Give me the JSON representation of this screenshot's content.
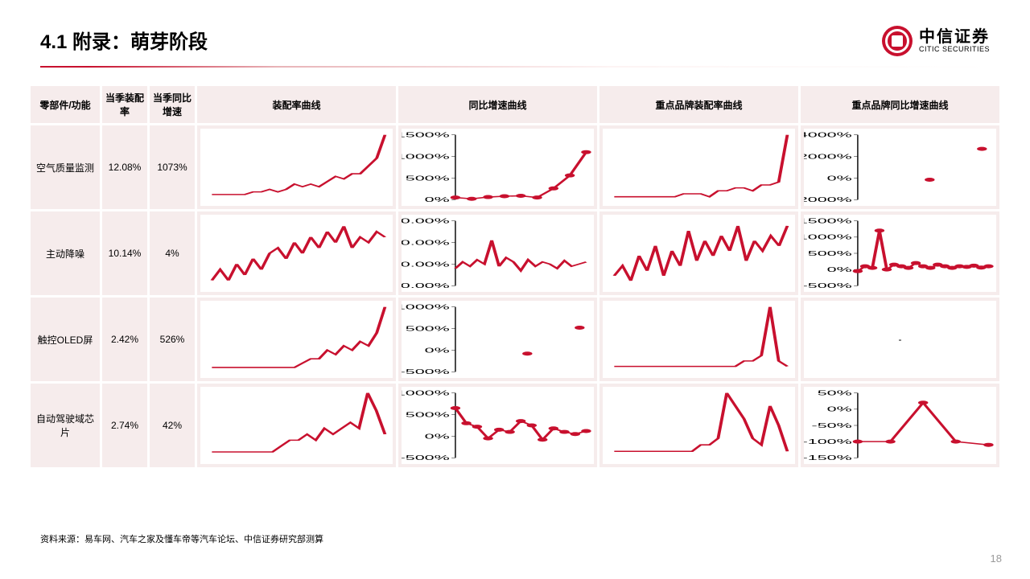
{
  "header": {
    "title": "4.1 附录：萌芽阶段",
    "logo_cn": "中信证券",
    "logo_en": "CITIC SECURITIES"
  },
  "colors": {
    "brand": "#c8102e",
    "cell_bg": "#f6ecec",
    "chart_bg": "#ffffff",
    "text": "#000000",
    "page_num": "#9a9a9a"
  },
  "table": {
    "headers": [
      "零部件/功能",
      "当季装配率",
      "当季同比增速",
      "装配率曲线",
      "同比增速曲线",
      "重点品牌装配率曲线",
      "重点品牌同比增速曲线"
    ],
    "rows": [
      {
        "name": "空气质量监测",
        "rate": "12.08%",
        "growth": "1073%",
        "charts": [
          {
            "type": "line",
            "y": [
              2,
              2,
              2,
              2,
              2,
              3,
              3,
              4,
              3,
              4,
              6,
              5,
              6,
              5,
              7,
              9,
              8,
              10,
              10,
              13,
              16,
              25
            ],
            "ylim": [
              0,
              25
            ],
            "ticks": []
          },
          {
            "type": "line-dot",
            "y": [
              50,
              20,
              60,
              80,
              90,
              50,
              260,
              560,
              1100
            ],
            "ylim": [
              0,
              1500
            ],
            "ticks": [
              "0%",
              "500%",
              "1000%",
              "1500%"
            ]
          },
          {
            "type": "line",
            "y": [
              1,
              1,
              1,
              1,
              1,
              1,
              1,
              1,
              2,
              2,
              2,
              1,
              3,
              3,
              4,
              4,
              3,
              5,
              5,
              6,
              22
            ],
            "ylim": [
              0,
              22
            ],
            "ticks": []
          },
          {
            "type": "dot",
            "y": [
              -150,
              2700
            ],
            "ylim": [
              -2000,
              4000
            ],
            "ticks": [
              "-2000%",
              "0%",
              "2000%",
              "4000%"
            ]
          }
        ]
      },
      {
        "name": "主动降噪",
        "rate": "10.14%",
        "growth": "4%",
        "charts": [
          {
            "type": "line",
            "y": [
              3,
              5,
              3,
              6,
              4,
              7,
              5,
              8,
              9,
              7,
              10,
              8,
              11,
              9,
              12,
              10,
              13,
              9,
              11,
              10,
              12,
              11
            ],
            "ylim": [
              2,
              14
            ],
            "ticks": []
          },
          {
            "type": "line",
            "y": [
              -100,
              50,
              -50,
              100,
              0,
              550,
              -50,
              150,
              50,
              -150,
              100,
              -50,
              50,
              0,
              -100,
              80,
              -50,
              0,
              50
            ],
            "ylim": [
              -500,
              1000
            ],
            "ticks": [
              "-500.00%",
              "0.00%",
              "500.00%",
              "1000.00%"
            ]
          },
          {
            "type": "line",
            "y": [
              3,
              5,
              2,
              7,
              4,
              9,
              3,
              8,
              5,
              12,
              6,
              10,
              7,
              11,
              8,
              13,
              6,
              10,
              8,
              11,
              9,
              13
            ],
            "ylim": [
              1,
              14
            ],
            "ticks": []
          },
          {
            "type": "line-dot",
            "y": [
              -50,
              100,
              50,
              1200,
              0,
              150,
              100,
              50,
              200,
              100,
              50,
              150,
              100,
              50,
              100,
              80,
              120,
              60,
              100
            ],
            "ylim": [
              -500,
              1500
            ],
            "ticks": [
              "-500%",
              "0%",
              "500%",
              "1000%",
              "1500%"
            ]
          }
        ]
      },
      {
        "name": "触控OLED屏",
        "rate": "2.42%",
        "growth": "526%",
        "charts": [
          {
            "type": "line",
            "y": [
              1,
              1,
              1,
              1,
              1,
              1,
              1,
              1,
              1,
              1,
              1,
              2,
              3,
              3,
              5,
              4,
              6,
              5,
              7,
              6,
              9,
              15
            ],
            "ylim": [
              0,
              15
            ],
            "ticks": []
          },
          {
            "type": "dot",
            "y": [
              -80,
              520
            ],
            "ylim": [
              -500,
              1000
            ],
            "ticks": [
              "-500%",
              "0%",
              "500%",
              "1000%"
            ]
          },
          {
            "type": "line",
            "y": [
              1,
              1,
              1,
              1,
              1,
              1,
              1,
              1,
              1,
              1,
              1,
              1,
              1,
              1,
              1,
              2,
              2,
              3,
              12,
              2,
              1
            ],
            "ylim": [
              0,
              12
            ],
            "ticks": []
          },
          {
            "type": "empty"
          }
        ]
      },
      {
        "name": "自动驾驶域芯片",
        "rate": "2.74%",
        "growth": "42%",
        "charts": [
          {
            "type": "line",
            "y": [
              1,
              1,
              1,
              1,
              1,
              1,
              1,
              1,
              2,
              3,
              3,
              4,
              3,
              5,
              4,
              5,
              6,
              5,
              11,
              8,
              4
            ],
            "ylim": [
              0,
              11
            ],
            "ticks": []
          },
          {
            "type": "line-dot",
            "y": [
              650,
              300,
              220,
              -50,
              150,
              100,
              350,
              250,
              -80,
              180,
              100,
              50,
              120
            ],
            "ylim": [
              -500,
              1000
            ],
            "ticks": [
              "-500%",
              "0%",
              "500%",
              "1000%"
            ]
          },
          {
            "type": "line",
            "y": [
              1,
              1,
              1,
              1,
              1,
              1,
              1,
              1,
              1,
              1,
              2,
              2,
              3,
              10,
              8,
              6,
              3,
              2,
              8,
              5,
              1
            ],
            "ylim": [
              0,
              10
            ],
            "ticks": []
          },
          {
            "type": "line-dot",
            "y": [
              -100,
              -100,
              20,
              -100,
              -110
            ],
            "ylim": [
              -150,
              50
            ],
            "ticks": [
              "-150%",
              "-100%",
              "-50%",
              "0%",
              "50%"
            ]
          }
        ]
      }
    ]
  },
  "footer": {
    "source": "资料来源：易车网、汽车之家及懂车帝等汽车论坛、中信证券研究部测算",
    "page": "18"
  }
}
